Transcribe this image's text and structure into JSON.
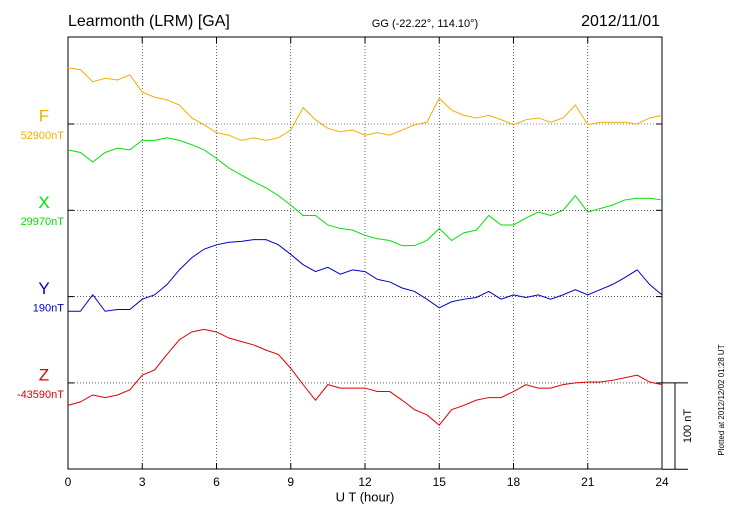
{
  "chart_data": {
    "type": "line",
    "title": "Learmonth (LRM)  [GA]",
    "subtitle": "GG (-22.22°, 114.10°)",
    "date": "2012/11/01",
    "plotted_note": "Plotted at 2012/12/02 01:28 UT",
    "x_label": "U T (hour)",
    "xlim": [
      0,
      24
    ],
    "xticks": [
      0,
      3,
      6,
      9,
      12,
      15,
      18,
      21,
      24
    ],
    "grid": true,
    "scale_bar": {
      "value": 100,
      "label": "100 nT"
    },
    "x": [
      0,
      0.5,
      1,
      1.5,
      2,
      2.5,
      3,
      3.5,
      4,
      4.5,
      5,
      5.5,
      6,
      6.5,
      7,
      7.5,
      8,
      8.5,
      9,
      9.5,
      10,
      10.5,
      11,
      11.5,
      12,
      12.5,
      13,
      13.5,
      14,
      14.5,
      15,
      15.5,
      16,
      16.5,
      17,
      17.5,
      18,
      18.5,
      19,
      19.5,
      20,
      20.5,
      21,
      21.5,
      22,
      22.5,
      23,
      23.5,
      24
    ],
    "series": [
      {
        "name": "F",
        "color": "#f0b000",
        "baseline": {
          "value": 52900,
          "label": "52900nT"
        },
        "values": [
          52965,
          52963,
          52949,
          52953,
          52951,
          52957,
          52937,
          52931,
          52928,
          52922,
          52907,
          52899,
          52890,
          52887,
          52881,
          52884,
          52881,
          52884,
          52893,
          52919,
          52905,
          52895,
          52891,
          52893,
          52887,
          52890,
          52887,
          52893,
          52899,
          52902,
          52930,
          52916,
          52910,
          52907,
          52910,
          52905,
          52899,
          52905,
          52907,
          52902,
          52907,
          52922,
          52899,
          52902,
          52902,
          52902,
          52900,
          52907,
          52910
        ]
      },
      {
        "name": "X",
        "color": "#00e000",
        "baseline": {
          "value": 29970,
          "label": "29970nT"
        },
        "values": [
          30040,
          30037,
          30026,
          30037,
          30042,
          30040,
          30051,
          30051,
          30054,
          30051,
          30046,
          30040,
          30030,
          30019,
          30011,
          30003,
          29996,
          29987,
          29976,
          29964,
          29964,
          29953,
          29949,
          29947,
          29941,
          29937,
          29935,
          29929,
          29929,
          29935,
          29949,
          29935,
          29944,
          29947,
          29964,
          29953,
          29953,
          29961,
          29968,
          29964,
          29970,
          29987,
          29968,
          29972,
          29976,
          29982,
          29984,
          29984,
          29982
        ]
      },
      {
        "name": "Y",
        "color": "#0000cc",
        "baseline": {
          "value": 190,
          "label": "190nT"
        },
        "values": [
          173,
          173,
          192,
          173,
          175,
          175,
          187,
          192,
          204,
          221,
          235,
          245,
          250,
          253,
          254,
          256,
          256,
          250,
          239,
          227,
          219,
          224,
          216,
          221,
          219,
          210,
          207,
          200,
          196,
          187,
          177,
          184,
          187,
          189,
          196,
          187,
          192,
          189,
          192,
          187,
          192,
          198,
          192,
          198,
          204,
          212,
          221,
          204,
          192
        ]
      },
      {
        "name": "Z",
        "color": "#e00000",
        "baseline": {
          "value": -43590,
          "label": "-43590nT"
        },
        "values": [
          -43616,
          -43612,
          -43604,
          -43607,
          -43604,
          -43598,
          -43581,
          -43575,
          -43557,
          -43540,
          -43531,
          -43528,
          -43531,
          -43538,
          -43542,
          -43546,
          -43552,
          -43557,
          -43573,
          -43592,
          -43610,
          -43592,
          -43596,
          -43596,
          -43596,
          -43600,
          -43600,
          -43610,
          -43621,
          -43627,
          -43639,
          -43621,
          -43616,
          -43610,
          -43607,
          -43607,
          -43600,
          -43592,
          -43596,
          -43596,
          -43592,
          -43590,
          -43589,
          -43589,
          -43587,
          -43584,
          -43581,
          -43589,
          -43592
        ]
      }
    ]
  }
}
